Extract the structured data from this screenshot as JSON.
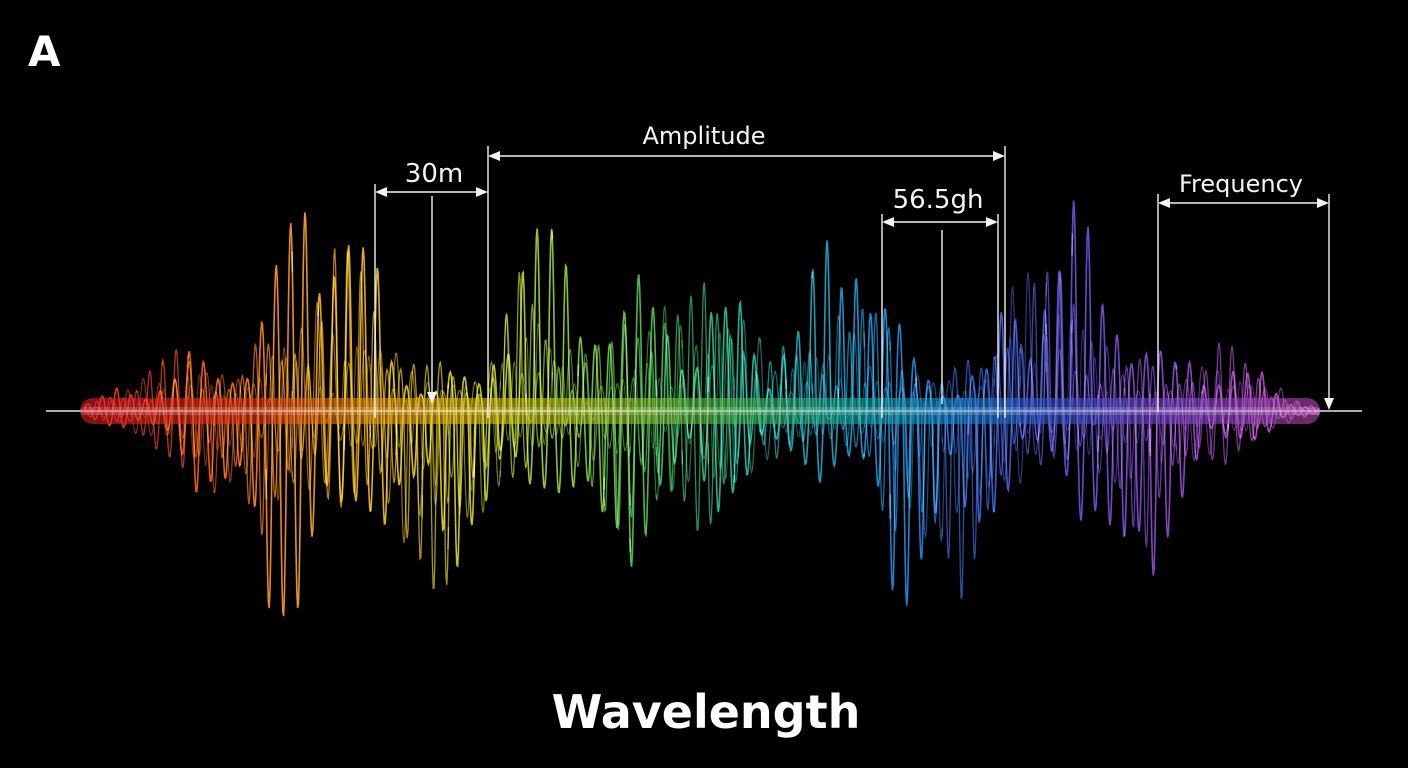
{
  "panel_label": "A",
  "title": "Wavelength",
  "annotations": {
    "amplitude": "Amplitude",
    "left_measure": "30m",
    "mid_measure": "56.5gh",
    "frequency": "Frequency"
  },
  "colors": {
    "background": "#000000",
    "spectrum": [
      "#e8242a",
      "#f05a1c",
      "#f3a21e",
      "#e6c81f",
      "#a6cf36",
      "#4fbf53",
      "#21b6a4",
      "#1c93d9",
      "#3a63d8",
      "#6d4fd0",
      "#9a47c2",
      "#c64fc0"
    ]
  }
}
